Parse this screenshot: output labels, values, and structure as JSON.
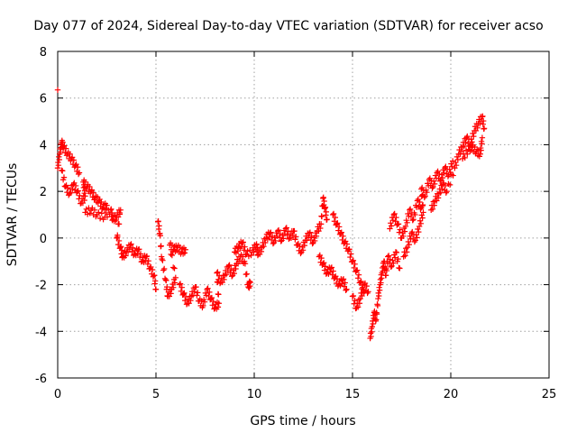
{
  "chart_data": {
    "type": "scatter",
    "title": "Day 077 of 2024, Sidereal Day-to-day VTEC variation (SDTVAR) for receiver acso",
    "xlabel": "GPS time / hours",
    "ylabel": "SDTVAR / TECUs",
    "xlim": [
      0,
      25
    ],
    "ylim": [
      -6,
      8
    ],
    "xticks": [
      0,
      5,
      10,
      15,
      20,
      25
    ],
    "yticks": [
      -6,
      -4,
      -2,
      0,
      2,
      4,
      6,
      8
    ],
    "grid": true,
    "marker": "+",
    "color": "#ff0000",
    "series": [
      {
        "name": "SDTVAR",
        "points": [
          [
            0.0,
            6.35
          ],
          [
            0.0,
            3.0
          ],
          [
            0.1,
            3.6
          ],
          [
            0.2,
            4.1
          ],
          [
            0.3,
            3.9
          ],
          [
            0.5,
            3.6
          ],
          [
            0.7,
            3.4
          ],
          [
            0.9,
            3.1
          ],
          [
            1.1,
            2.8
          ],
          [
            0.2,
            2.9
          ],
          [
            0.4,
            2.2
          ],
          [
            0.6,
            1.9
          ],
          [
            0.8,
            2.3
          ],
          [
            1.0,
            2.0
          ],
          [
            1.2,
            1.5
          ],
          [
            1.4,
            1.8
          ],
          [
            1.3,
            2.4
          ],
          [
            1.5,
            2.2
          ],
          [
            1.7,
            2.0
          ],
          [
            1.9,
            1.7
          ],
          [
            2.1,
            1.6
          ],
          [
            2.3,
            1.3
          ],
          [
            2.5,
            1.4
          ],
          [
            1.4,
            1.1
          ],
          [
            1.7,
            1.2
          ],
          [
            2.0,
            1.0
          ],
          [
            2.4,
            0.9
          ],
          [
            2.7,
            1.2
          ],
          [
            2.8,
            0.8
          ],
          [
            3.0,
            0.9
          ],
          [
            3.2,
            1.2
          ],
          [
            3.0,
            0.0
          ],
          [
            3.2,
            -0.4
          ],
          [
            3.3,
            -0.8
          ],
          [
            3.5,
            -0.6
          ],
          [
            3.7,
            -0.3
          ],
          [
            3.9,
            -0.7
          ],
          [
            4.1,
            -0.5
          ],
          [
            4.3,
            -1.0
          ],
          [
            4.5,
            -0.8
          ],
          [
            4.7,
            -1.3
          ],
          [
            4.9,
            -1.6
          ],
          [
            5.0,
            -2.2
          ],
          [
            5.1,
            0.7
          ],
          [
            5.2,
            0.2
          ],
          [
            5.3,
            -0.9
          ],
          [
            5.5,
            -1.8
          ],
          [
            5.6,
            -2.5
          ],
          [
            5.8,
            -2.2
          ],
          [
            6.0,
            -1.7
          ],
          [
            5.7,
            -0.3
          ],
          [
            5.9,
            -0.5
          ],
          [
            6.1,
            -0.4
          ],
          [
            6.3,
            -0.6
          ],
          [
            6.5,
            -0.5
          ],
          [
            6.2,
            -2.0
          ],
          [
            6.4,
            -2.4
          ],
          [
            6.6,
            -2.8
          ],
          [
            6.8,
            -2.5
          ],
          [
            7.0,
            -2.1
          ],
          [
            7.2,
            -2.7
          ],
          [
            7.4,
            -2.9
          ],
          [
            7.6,
            -2.2
          ],
          [
            7.8,
            -2.6
          ],
          [
            8.0,
            -3.0
          ],
          [
            8.2,
            -2.8
          ],
          [
            8.1,
            -1.5
          ],
          [
            8.3,
            -1.9
          ],
          [
            8.5,
            -1.6
          ],
          [
            8.7,
            -1.2
          ],
          [
            8.9,
            -1.6
          ],
          [
            9.1,
            -1.1
          ],
          [
            9.3,
            -0.8
          ],
          [
            9.5,
            -1.0
          ],
          [
            9.7,
            -2.1
          ],
          [
            9.8,
            -1.9
          ],
          [
            9.0,
            -0.6
          ],
          [
            9.2,
            -0.4
          ],
          [
            9.4,
            -0.2
          ],
          [
            9.6,
            -0.7
          ],
          [
            9.9,
            -0.6
          ],
          [
            10.1,
            -0.3
          ],
          [
            10.2,
            -0.7
          ],
          [
            10.4,
            -0.4
          ],
          [
            10.6,
            0.0
          ],
          [
            10.8,
            0.2
          ],
          [
            11.0,
            -0.2
          ],
          [
            11.2,
            0.3
          ],
          [
            11.4,
            -0.1
          ],
          [
            11.6,
            0.4
          ],
          [
            11.8,
            0.0
          ],
          [
            12.0,
            0.3
          ],
          [
            12.2,
            -0.3
          ],
          [
            12.4,
            -0.6
          ],
          [
            12.6,
            -0.1
          ],
          [
            12.8,
            0.2
          ],
          [
            13.0,
            -0.2
          ],
          [
            13.2,
            0.3
          ],
          [
            13.4,
            0.6
          ],
          [
            13.5,
            1.7
          ],
          [
            13.6,
            1.3
          ],
          [
            13.7,
            0.8
          ],
          [
            13.3,
            -0.8
          ],
          [
            13.5,
            -1.1
          ],
          [
            13.7,
            -1.5
          ],
          [
            13.9,
            -1.3
          ],
          [
            14.1,
            -1.7
          ],
          [
            14.3,
            -2.0
          ],
          [
            14.5,
            -1.8
          ],
          [
            14.7,
            -2.2
          ],
          [
            14.0,
            1.0
          ],
          [
            14.2,
            0.6
          ],
          [
            14.4,
            0.2
          ],
          [
            14.6,
            -0.2
          ],
          [
            14.8,
            -0.5
          ],
          [
            15.0,
            -1.0
          ],
          [
            15.2,
            -1.4
          ],
          [
            15.4,
            -1.9
          ],
          [
            15.6,
            -2.3
          ],
          [
            15.0,
            -2.5
          ],
          [
            15.2,
            -3.0
          ],
          [
            15.4,
            -2.6
          ],
          [
            15.6,
            -2.0
          ],
          [
            15.8,
            -2.3
          ],
          [
            15.9,
            -4.3
          ],
          [
            16.0,
            -3.8
          ],
          [
            16.1,
            -3.2
          ],
          [
            16.2,
            -3.5
          ],
          [
            16.3,
            -2.6
          ],
          [
            16.4,
            -2.0
          ],
          [
            16.5,
            -1.5
          ],
          [
            16.6,
            -1.0
          ],
          [
            16.7,
            -1.6
          ],
          [
            16.8,
            -0.8
          ],
          [
            17.0,
            -1.2
          ],
          [
            17.2,
            -0.6
          ],
          [
            17.4,
            -1.3
          ],
          [
            16.9,
            0.4
          ],
          [
            17.1,
            1.0
          ],
          [
            17.3,
            0.6
          ],
          [
            17.5,
            0.0
          ],
          [
            17.7,
            0.5
          ],
          [
            17.9,
            1.2
          ],
          [
            18.1,
            0.8
          ],
          [
            18.3,
            1.6
          ],
          [
            18.5,
            1.3
          ],
          [
            17.6,
            -0.8
          ],
          [
            17.8,
            -0.4
          ],
          [
            18.0,
            0.2
          ],
          [
            18.2,
            -0.1
          ],
          [
            18.4,
            0.5
          ],
          [
            18.6,
            1.1
          ],
          [
            18.5,
            2.1
          ],
          [
            18.7,
            1.8
          ],
          [
            18.9,
            2.5
          ],
          [
            19.1,
            2.2
          ],
          [
            19.3,
            2.8
          ],
          [
            19.5,
            2.5
          ],
          [
            19.7,
            3.0
          ],
          [
            19.9,
            2.7
          ],
          [
            20.1,
            3.3
          ],
          [
            19.0,
            1.2
          ],
          [
            19.2,
            1.6
          ],
          [
            19.4,
            1.9
          ],
          [
            19.6,
            2.3
          ],
          [
            19.8,
            2.0
          ],
          [
            20.2,
            3.0
          ],
          [
            20.4,
            3.6
          ],
          [
            20.6,
            3.9
          ],
          [
            20.8,
            4.3
          ],
          [
            21.0,
            4.0
          ],
          [
            21.2,
            4.6
          ],
          [
            21.4,
            4.9
          ],
          [
            21.6,
            5.2
          ],
          [
            21.7,
            4.7
          ],
          [
            20.6,
            3.4
          ],
          [
            20.9,
            3.8
          ],
          [
            21.1,
            3.9
          ],
          [
            21.3,
            3.7
          ],
          [
            21.5,
            3.6
          ],
          [
            21.6,
            4.3
          ]
        ]
      }
    ]
  }
}
